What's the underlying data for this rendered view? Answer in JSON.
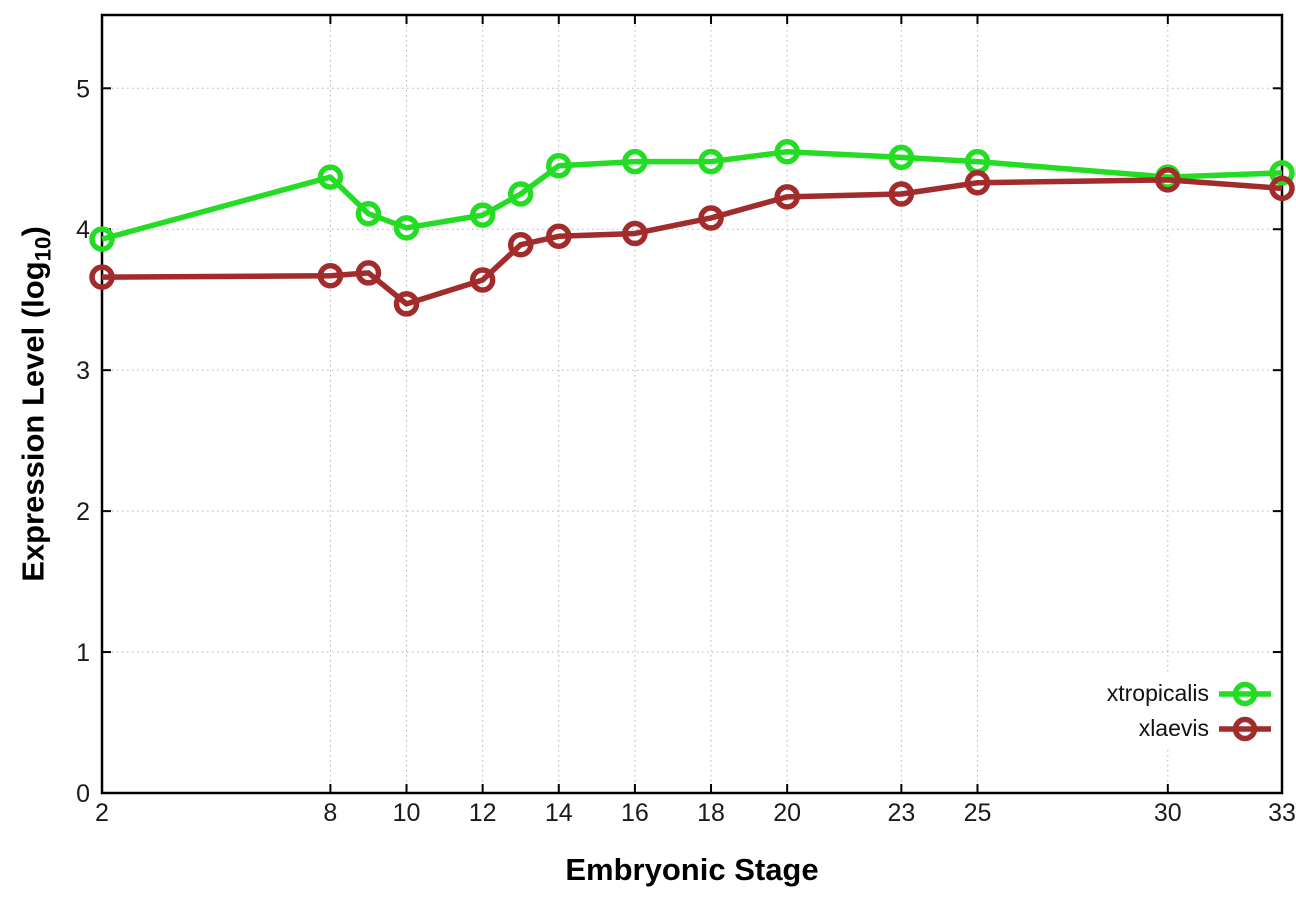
{
  "chart_data": {
    "type": "line",
    "title": "",
    "xlabel": "Embryonic Stage",
    "ylabel": {
      "prefix": "Expression Level (log",
      "sub": "10",
      "suffix": ")"
    },
    "xlim": [
      2,
      33
    ],
    "ylim": [
      0,
      5.52
    ],
    "x_ticks": [
      2,
      8,
      10,
      12,
      14,
      16,
      18,
      20,
      23,
      25,
      30,
      33
    ],
    "y_ticks": [
      0,
      1,
      2,
      3,
      4,
      5
    ],
    "grid": true,
    "legend_position": "inside-bottom-right",
    "series": [
      {
        "name": "xtropicalis",
        "color": "#23DC23",
        "marker": "open-circle",
        "points": [
          [
            2,
            3.93
          ],
          [
            8,
            4.37
          ],
          [
            9,
            4.11
          ],
          [
            10,
            4.01
          ],
          [
            12,
            4.1
          ],
          [
            13,
            4.25
          ],
          [
            14,
            4.45
          ],
          [
            16,
            4.48
          ],
          [
            18,
            4.48
          ],
          [
            20,
            4.55
          ],
          [
            23,
            4.51
          ],
          [
            25,
            4.48
          ],
          [
            30,
            4.37
          ],
          [
            33,
            4.4
          ]
        ]
      },
      {
        "name": "xlaevis",
        "color": "#A22B2B",
        "marker": "open-circle",
        "points": [
          [
            2,
            3.66
          ],
          [
            8,
            3.67
          ],
          [
            9,
            3.69
          ],
          [
            10,
            3.47
          ],
          [
            12,
            3.64
          ],
          [
            13,
            3.89
          ],
          [
            14,
            3.95
          ],
          [
            16,
            3.97
          ],
          [
            18,
            4.08
          ],
          [
            20,
            4.23
          ],
          [
            23,
            4.25
          ],
          [
            25,
            4.33
          ],
          [
            30,
            4.35
          ],
          [
            33,
            4.29
          ]
        ]
      }
    ]
  },
  "colors": {
    "background": "#ffffff",
    "grid": "#b3b3b3",
    "axis": "#000000",
    "tick_text": "#1a1a1a"
  }
}
